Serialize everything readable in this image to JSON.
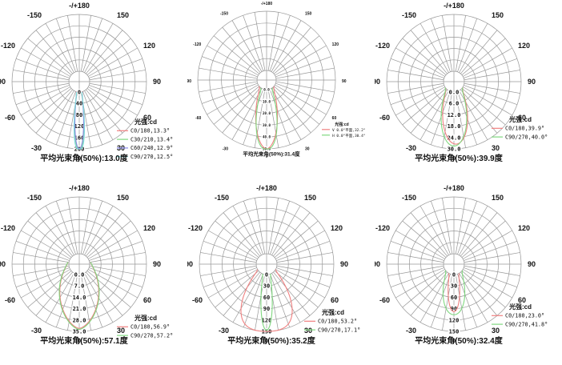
{
  "page": {
    "background": "#ffffff",
    "unit": "cd"
  },
  "palette": {
    "red": "#f08080",
    "green": "#7fd87f",
    "blue": "#8888e8",
    "cyan": "#7fdcdc",
    "legend_title": "#000080",
    "grid": "#979797",
    "text": "#111111"
  },
  "chart_data": [
    {
      "id": "top-left",
      "type": "line",
      "subtype": "polar-intensity",
      "unit": "cd",
      "legend_title": "光强:cd",
      "angle_ticks": [
        {
          "deg": 180,
          "label": "-/+180"
        },
        {
          "deg": 150,
          "label": "150"
        },
        {
          "deg": 120,
          "label": "120"
        },
        {
          "deg": 90,
          "label": "90"
        },
        {
          "deg": 60,
          "label": "60"
        },
        {
          "deg": 30,
          "label": "30"
        },
        {
          "deg": 0,
          "label": "0"
        },
        {
          "deg": -30,
          "label": "-30"
        },
        {
          "deg": -60,
          "label": "-60"
        },
        {
          "deg": -90,
          "label": "-90"
        },
        {
          "deg": -120,
          "label": "-120"
        },
        {
          "deg": -150,
          "label": "-150"
        }
      ],
      "radial_tick_labels": [
        "0",
        "40",
        "80",
        "120",
        "160",
        "200"
      ],
      "radial_max": 200,
      "series": [
        {
          "name": "C0/180,13.3°",
          "beam_angle_deg": 13.3,
          "color": "#f08080",
          "peak": 200,
          "exp": 2.2,
          "tilt": 0
        },
        {
          "name": "C30/210,13.4°",
          "beam_angle_deg": 13.4,
          "color": "#7fd87f",
          "peak": 201,
          "exp": 2.4,
          "tilt": 0
        },
        {
          "name": "C60/240,12.9°",
          "beam_angle_deg": 12.9,
          "color": "#8888e8",
          "peak": 199,
          "exp": 2.2,
          "tilt": 0
        },
        {
          "name": "C90/270,12.5°",
          "beam_angle_deg": 12.5,
          "color": "#7fdcdc",
          "peak": 203,
          "exp": 2.8,
          "render_half": 7.4,
          "tilt": 0
        }
      ],
      "caption": "平均光束角(50%):13.0度",
      "small": false
    },
    {
      "id": "top-middle",
      "type": "line",
      "subtype": "polar-intensity",
      "unit": "cd",
      "legend_title": "光强:cd",
      "angle_ticks": [
        {
          "deg": 180,
          "label": "-/+180"
        },
        {
          "deg": 150,
          "label": "150"
        },
        {
          "deg": 120,
          "label": "120"
        },
        {
          "deg": 90,
          "label": "90"
        },
        {
          "deg": 60,
          "label": "60"
        },
        {
          "deg": 30,
          "label": "30"
        },
        {
          "deg": 0,
          "label": "0"
        },
        {
          "deg": -30,
          "label": "-30"
        },
        {
          "deg": -60,
          "label": "-60"
        },
        {
          "deg": -90,
          "label": "-90"
        },
        {
          "deg": -120,
          "label": "-120"
        },
        {
          "deg": -150,
          "label": "-150"
        }
      ],
      "radial_tick_labels": [
        "0.0",
        "10.0",
        "20.0",
        "30.0",
        "40.0",
        "50.0"
      ],
      "radial_max": 50,
      "series": [
        {
          "name": "V 0.0°平面,32.2°",
          "beam_angle_deg": 32.2,
          "color": "#f08080",
          "peak": 50,
          "exp": 1.8,
          "tilt": 0
        },
        {
          "name": "H 0.0°平面,30.4°",
          "beam_angle_deg": 30.4,
          "color": "#7fd87f",
          "peak": 50.5,
          "exp": 2.3,
          "tilt": 0
        }
      ],
      "caption": "平均光束角(50%):31.4度",
      "small": true
    },
    {
      "id": "top-right",
      "type": "line",
      "subtype": "polar-intensity",
      "unit": "cd",
      "legend_title": "光强:cd",
      "angle_ticks": [
        {
          "deg": 180,
          "label": "-/+180"
        },
        {
          "deg": 150,
          "label": "150"
        },
        {
          "deg": 120,
          "label": "120"
        },
        {
          "deg": 90,
          "label": "90"
        },
        {
          "deg": 60,
          "label": "60"
        },
        {
          "deg": 30,
          "label": "30"
        },
        {
          "deg": 0,
          "label": "0"
        },
        {
          "deg": -30,
          "label": "-30"
        },
        {
          "deg": -60,
          "label": "-60"
        },
        {
          "deg": -90,
          "label": "-90"
        },
        {
          "deg": -120,
          "label": "-120"
        },
        {
          "deg": -150,
          "label": "-150"
        }
      ],
      "radial_tick_labels": [
        "0.0",
        "6.0",
        "12.0",
        "18.0",
        "24.0",
        "30.0"
      ],
      "radial_max": 30,
      "series": [
        {
          "name": "C0/180,39.9°",
          "beam_angle_deg": 39.9,
          "color": "#f08080",
          "peak": 27.5,
          "exp": 2.0,
          "tilt": 2
        },
        {
          "name": "C90/270,40.0°",
          "beam_angle_deg": 40.0,
          "color": "#7fd87f",
          "peak": 28.5,
          "exp": 2.0,
          "tilt": 0
        }
      ],
      "caption": "平均光束角(50%):39.9度",
      "small": false
    },
    {
      "id": "bottom-left",
      "type": "line",
      "subtype": "polar-intensity",
      "unit": "cd",
      "legend_title": "光强:cd",
      "angle_ticks": [
        {
          "deg": 180,
          "label": "-/+180"
        },
        {
          "deg": 150,
          "label": "150"
        },
        {
          "deg": 120,
          "label": "120"
        },
        {
          "deg": 90,
          "label": "90"
        },
        {
          "deg": 60,
          "label": "60"
        },
        {
          "deg": 30,
          "label": "30"
        },
        {
          "deg": 0,
          "label": "0"
        },
        {
          "deg": -30,
          "label": "-30"
        },
        {
          "deg": -60,
          "label": "-60"
        },
        {
          "deg": -90,
          "label": "-90"
        },
        {
          "deg": -120,
          "label": "-120"
        },
        {
          "deg": -150,
          "label": "-150"
        }
      ],
      "radial_tick_labels": [
        "0.0",
        "7.0",
        "14.0",
        "21.0",
        "28.0",
        "35.0"
      ],
      "radial_max": 35,
      "series": [
        {
          "name": "C0/180,56.9°",
          "beam_angle_deg": 56.9,
          "color": "#f08080",
          "peak": 33.2,
          "exp": 1.5,
          "render_half": 31,
          "tilt": 0
        },
        {
          "name": "C90/270,57.2°",
          "beam_angle_deg": 57.2,
          "color": "#7fd87f",
          "peak": 33.8,
          "exp": 1.5,
          "render_half": 31.5,
          "tilt": 0
        }
      ],
      "caption": "平均光束角(50%):57.1度",
      "small": false
    },
    {
      "id": "bottom-middle",
      "type": "line",
      "subtype": "polar-intensity",
      "unit": "cd",
      "legend_title": "光强:cd",
      "angle_ticks": [
        {
          "deg": 180,
          "label": "-/+180"
        },
        {
          "deg": 150,
          "label": "150"
        },
        {
          "deg": 120,
          "label": "120"
        },
        {
          "deg": 90,
          "label": "90"
        },
        {
          "deg": 60,
          "label": "60"
        },
        {
          "deg": 30,
          "label": "30"
        },
        {
          "deg": 0,
          "label": "0"
        },
        {
          "deg": -30,
          "label": "-30"
        },
        {
          "deg": -60,
          "label": "-60"
        },
        {
          "deg": -90,
          "label": "-90"
        },
        {
          "deg": -120,
          "label": "-120"
        },
        {
          "deg": -150,
          "label": "-150"
        }
      ],
      "radial_tick_labels": [
        "0",
        "30",
        "60",
        "90",
        "120",
        "150"
      ],
      "radial_max": 150,
      "series": [
        {
          "name": "C0/180,53.2°",
          "beam_angle_deg": 53.2,
          "color": "#f08080",
          "peak": 150,
          "exp": 4.0,
          "render_half": 36,
          "tilt": 0
        },
        {
          "name": "C90/270,17.1°",
          "beam_angle_deg": 17.1,
          "color": "#7fd87f",
          "peak": 147,
          "exp": 2.0,
          "tilt": 0
        }
      ],
      "caption": "平均光束角(50%):35.2度",
      "small": false
    },
    {
      "id": "bottom-right",
      "type": "line",
      "subtype": "polar-intensity",
      "unit": "cd",
      "legend_title": "光强:cd",
      "angle_ticks": [
        {
          "deg": 180,
          "label": "-/+180"
        },
        {
          "deg": 150,
          "label": "150"
        },
        {
          "deg": 120,
          "label": "120"
        },
        {
          "deg": 90,
          "label": "90"
        },
        {
          "deg": 60,
          "label": "60"
        },
        {
          "deg": 30,
          "label": "30"
        },
        {
          "deg": 0,
          "label": "0"
        },
        {
          "deg": -30,
          "label": "-30"
        },
        {
          "deg": -60,
          "label": "-60"
        },
        {
          "deg": -90,
          "label": "-90"
        },
        {
          "deg": -120,
          "label": "-120"
        },
        {
          "deg": -150,
          "label": "-150"
        }
      ],
      "radial_tick_labels": [
        "0",
        "30",
        "60",
        "90",
        "120",
        "150"
      ],
      "radial_max": 150,
      "series": [
        {
          "name": "C0/180,23.0°",
          "beam_angle_deg": 23.0,
          "color": "#f08080",
          "peak": 98,
          "exp": 2.0,
          "tilt": 0
        },
        {
          "name": "C90/270,41.8°",
          "beam_angle_deg": 41.8,
          "color": "#7fd87f",
          "peak": 106,
          "exp": 2.1,
          "tilt": 0
        }
      ],
      "caption": "平均光束角(50%):32.4度",
      "small": false
    }
  ]
}
